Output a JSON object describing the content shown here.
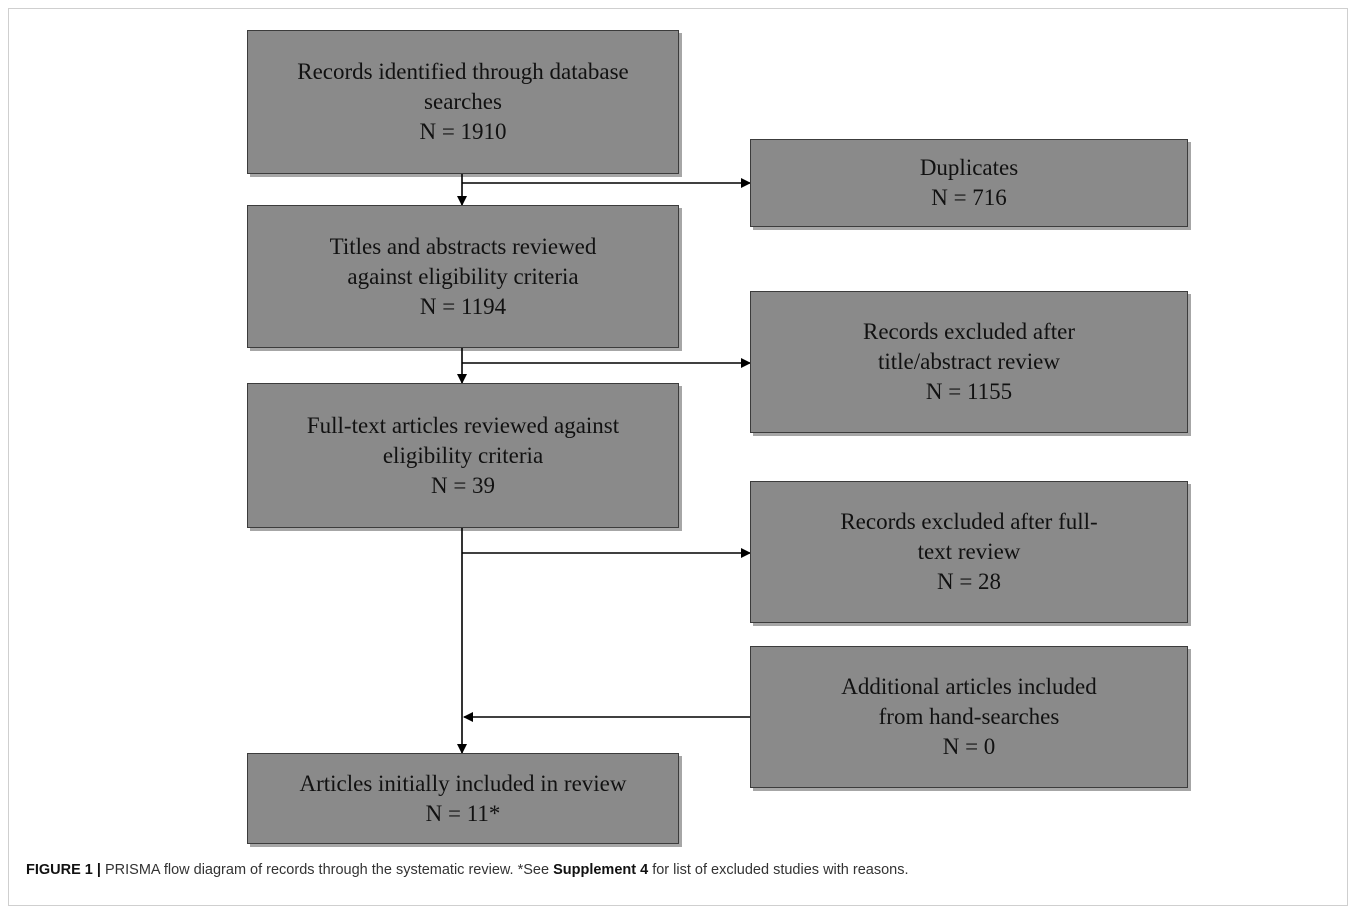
{
  "boxes": {
    "identified": {
      "lines": [
        "Records identified through database",
        "searches",
        "N = 1910"
      ]
    },
    "duplicates": {
      "lines": [
        "Duplicates",
        "N = 716"
      ]
    },
    "titles_abstracts": {
      "lines": [
        "Titles and abstracts reviewed",
        "against eligibility criteria",
        "N = 1194"
      ]
    },
    "excluded_title": {
      "lines": [
        "Records excluded after",
        "title/abstract review",
        "N = 1155"
      ]
    },
    "full_text": {
      "lines": [
        "Full-text articles reviewed against",
        "eligibility criteria",
        "N = 39"
      ]
    },
    "excluded_full": {
      "lines": [
        "Records excluded after full-",
        "text review",
        "N = 28"
      ]
    },
    "additional": {
      "lines": [
        "Additional articles included",
        "from hand-searches",
        "N = 0"
      ]
    },
    "included": {
      "lines": [
        "Articles initially included in review",
        "N = 11*"
      ]
    }
  },
  "caption": {
    "label": "FIGURE 1 |",
    "text_before": " PRISMA flow diagram of records through the systematic review. *See ",
    "link": "Supplement 4",
    "text_after": " for list of excluded studies with reasons."
  },
  "colors": {
    "box_fill": "#8a8a8a",
    "box_border": "#3c3c3c",
    "line": "#000000"
  }
}
